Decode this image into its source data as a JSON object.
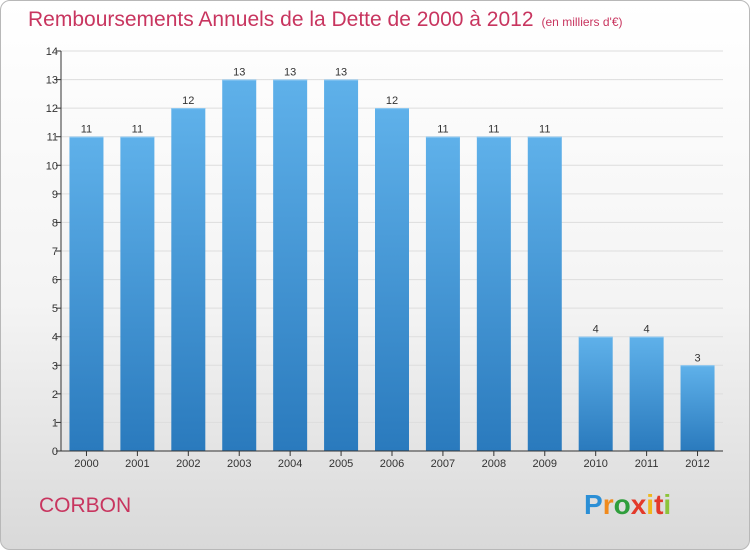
{
  "chart_data": {
    "type": "bar",
    "title": "Remboursements Annuels de la Dette de 2000 à 2012",
    "subtitle": "(en milliers d'€)",
    "categories": [
      "2000",
      "2001",
      "2002",
      "2003",
      "2004",
      "2005",
      "2006",
      "2007",
      "2008",
      "2009",
      "2010",
      "2011",
      "2012"
    ],
    "values": [
      11,
      11,
      12,
      13,
      13,
      13,
      12,
      11,
      11,
      11,
      4,
      4,
      3
    ],
    "data_labels": [
      "11",
      "11",
      "12",
      "13",
      "13",
      "13",
      "12",
      "11",
      "11",
      "11",
      "4",
      "4",
      "3"
    ],
    "yticks": [
      "0",
      "1",
      "2",
      "3",
      "4",
      "5",
      "6",
      "7",
      "8",
      "9",
      "10",
      "11",
      "12",
      "13",
      "14"
    ],
    "ylim": [
      0,
      14
    ],
    "xlabel": "",
    "ylabel": "",
    "grid": true,
    "colors": {
      "bar": "#4f9fdc",
      "bar_light": "#5fb1ea",
      "bar_dark": "#2f7fc0",
      "grid": "#dddddd",
      "axis": "#333333"
    }
  },
  "footer": {
    "commune": "CORBON",
    "logo": [
      "P",
      "r",
      "o",
      "x",
      "i",
      "t",
      "i"
    ]
  }
}
